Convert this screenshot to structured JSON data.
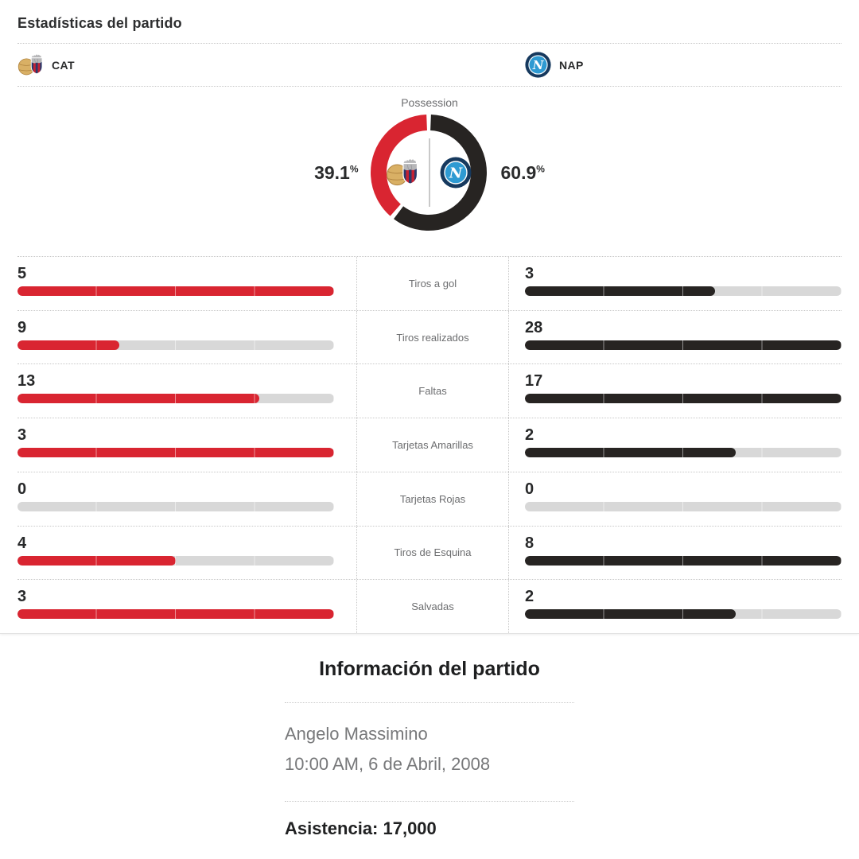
{
  "colors": {
    "home": "#d92531",
    "away": "#272422",
    "track": "#d8d8d8",
    "divider": "#c7c7c7"
  },
  "header": {
    "title": "Estadísticas del partido"
  },
  "teams": {
    "home": {
      "abbr": "CAT",
      "icon": "catania-crest"
    },
    "away": {
      "abbr": "NAP",
      "icon": "napoli-crest"
    }
  },
  "possession": {
    "title": "Possession",
    "home_pct": "39.1",
    "away_pct": "60.9",
    "percent_symbol": "%"
  },
  "stats": {
    "rows": [
      {
        "label": "Tiros a gol",
        "home": 5,
        "away": 3
      },
      {
        "label": "Tiros realizados",
        "home": 9,
        "away": 28
      },
      {
        "label": "Faltas",
        "home": 13,
        "away": 17
      },
      {
        "label": "Tarjetas Amarillas",
        "home": 3,
        "away": 2
      },
      {
        "label": "Tarjetas Rojas",
        "home": 0,
        "away": 0
      },
      {
        "label": "Tiros de Esquina",
        "home": 4,
        "away": 8
      },
      {
        "label": "Salvadas",
        "home": 3,
        "away": 2
      }
    ]
  },
  "match_info": {
    "title": "Información del partido",
    "venue": "Angelo Massimino",
    "datetime": "10:00 AM, 6 de Abril, 2008",
    "attendance": "Asistencia: 17,000"
  },
  "chart_data": [
    {
      "type": "pie",
      "subtype": "donut",
      "title": "Possession",
      "series": [
        {
          "name": "CAT",
          "value": 39.1,
          "color": "#d92531"
        },
        {
          "name": "NAP",
          "value": 60.9,
          "color": "#272422"
        }
      ],
      "labels_position": "sides",
      "center_content": "team-crests"
    },
    {
      "type": "bar",
      "orientation": "horizontal",
      "categories": [
        "Tiros a gol",
        "Tiros realizados",
        "Faltas",
        "Tarjetas Amarillas",
        "Tarjetas Rojas",
        "Tiros de Esquina",
        "Salvadas"
      ],
      "series": [
        {
          "name": "CAT",
          "values": [
            5,
            9,
            13,
            3,
            0,
            4,
            3
          ],
          "color": "#d92531"
        },
        {
          "name": "NAP",
          "values": [
            3,
            28,
            17,
            2,
            0,
            8,
            2
          ],
          "color": "#272422"
        }
      ],
      "scaling": "each bar filled proportionally to the row maximum of the two teams"
    }
  ]
}
